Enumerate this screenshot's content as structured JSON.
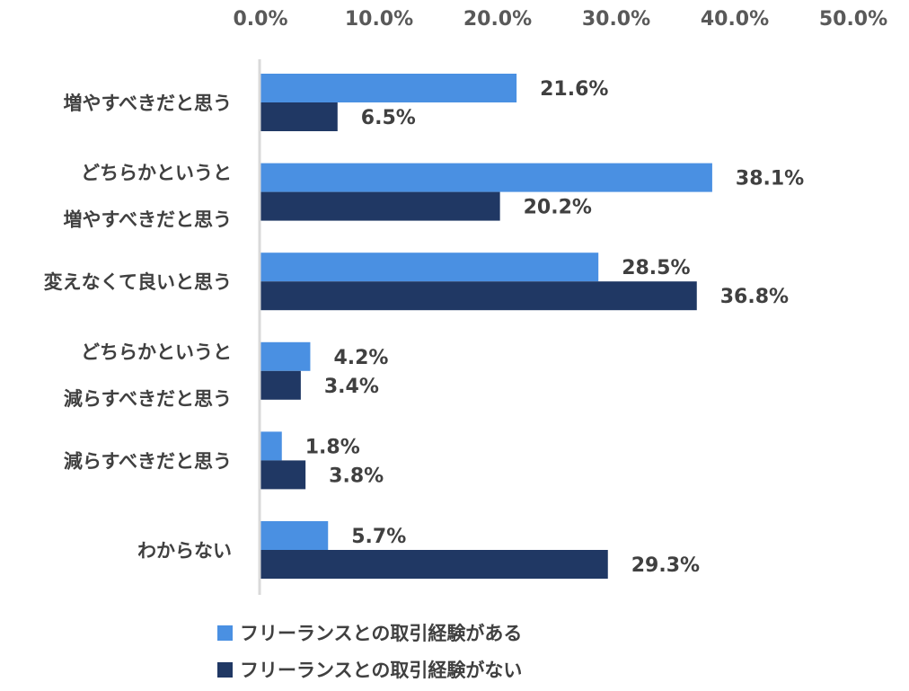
{
  "chart_data": {
    "type": "bar",
    "orientation": "horizontal",
    "x_tick_labels": [
      "0.0%",
      "10.0%",
      "20.0%",
      "30.0%",
      "40.0%",
      "50.0%"
    ],
    "xlim": [
      0,
      50
    ],
    "categories": [
      [
        "増やすべきだと思う"
      ],
      [
        "どちらかというと",
        "増やすべきだと思う"
      ],
      [
        "変えなくて良いと思う"
      ],
      [
        "どちらかというと",
        "減らすべきだと思う"
      ],
      [
        "減らすべきだと思う"
      ],
      [
        "わからない"
      ]
    ],
    "series": [
      {
        "name": "フリーランスとの取引経験がある",
        "color": "#4a90e2",
        "values": [
          21.6,
          38.1,
          28.5,
          4.2,
          1.8,
          5.7
        ],
        "labels": [
          "21.6%",
          "38.1%",
          "28.5%",
          "4.2%",
          "1.8%",
          "5.7%"
        ]
      },
      {
        "name": "フリーランスとの取引経験がない",
        "color": "#203864",
        "values": [
          6.5,
          20.2,
          36.8,
          3.4,
          3.8,
          29.3
        ],
        "labels": [
          "6.5%",
          "20.2%",
          "36.8%",
          "3.4%",
          "3.8%",
          "29.3%"
        ]
      }
    ],
    "legend_position": "bottom",
    "grid": false
  }
}
